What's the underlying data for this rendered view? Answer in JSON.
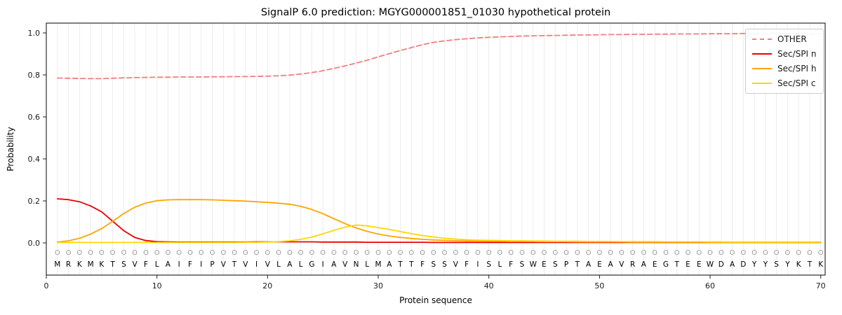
{
  "title": "SignalP 6.0 prediction: MGYG000001851_01030 hypothetical protein",
  "axes": {
    "ylabel": "Probability",
    "xlabel": "Protein sequence",
    "yticks": [
      0.0,
      0.2,
      0.4,
      0.6,
      0.8,
      1.0
    ],
    "xticks": [
      0,
      10,
      20,
      30,
      40,
      50,
      60,
      70
    ]
  },
  "chart_data": {
    "type": "line",
    "title": "SignalP 6.0 prediction: MGYG000001851_01030 hypothetical protein",
    "xlabel": "Protein sequence",
    "ylabel": "Probability",
    "xlim": [
      0,
      70.4
    ],
    "ylim": [
      -0.15,
      1.05
    ],
    "grid": "vertical-per-residue",
    "legend_position": "upper right",
    "sequence": "MRKMKTSVFLAIFIPVTVIVLALGIAVNLMATTFSSVFISLFSWESPTAEAVRAEGTEEWDADYYSYKTK",
    "predicted_labels": "OOOOOOOOOOOOOOOOOOOOOOOOOOOOOOOOOOOOOOOOOOOOOOOOOOOOOOOOOOOOOOOOOOOOOO",
    "x_positions_note": "x = residue index 1..70",
    "series": [
      {
        "id": "other",
        "name": "OTHER",
        "color": "#f08080",
        "dashed": true,
        "values": [
          0.785,
          0.784,
          0.783,
          0.782,
          0.782,
          0.784,
          0.786,
          0.787,
          0.788,
          0.789,
          0.789,
          0.79,
          0.79,
          0.79,
          0.791,
          0.791,
          0.792,
          0.792,
          0.793,
          0.794,
          0.796,
          0.799,
          0.804,
          0.811,
          0.82,
          0.831,
          0.843,
          0.856,
          0.87,
          0.886,
          0.901,
          0.916,
          0.93,
          0.944,
          0.955,
          0.962,
          0.968,
          0.972,
          0.976,
          0.979,
          0.981,
          0.983,
          0.985,
          0.986,
          0.987,
          0.988,
          0.989,
          0.99,
          0.99,
          0.991,
          0.992,
          0.992,
          0.993,
          0.993,
          0.994,
          0.994,
          0.995,
          0.995,
          0.995,
          0.996,
          0.996,
          0.996,
          0.997,
          0.997,
          0.997,
          0.997,
          0.997,
          0.997,
          0.997,
          0.997
        ]
      },
      {
        "id": "sec-spi-n",
        "name": "Sec/SPI n",
        "color": "#ee0000",
        "dashed": false,
        "values": [
          0.21,
          0.206,
          0.196,
          0.176,
          0.148,
          0.103,
          0.058,
          0.026,
          0.011,
          0.006,
          0.005,
          0.004,
          0.004,
          0.004,
          0.004,
          0.004,
          0.004,
          0.004,
          0.005,
          0.005,
          0.005,
          0.005,
          0.005,
          0.005,
          0.004,
          0.004,
          0.004,
          0.004,
          0.003,
          0.003,
          0.003,
          0.003,
          0.003,
          0.003,
          0.002,
          0.002,
          0.002,
          0.002,
          0.002,
          0.002,
          0.002,
          0.002,
          0.002,
          0.002,
          0.002,
          0.002,
          0.002,
          0.002,
          0.002,
          0.002,
          0.002,
          0.002,
          0.002,
          0.002,
          0.002,
          0.002,
          0.002,
          0.002,
          0.002,
          0.002,
          0.002,
          0.002,
          0.002,
          0.002,
          0.002,
          0.002,
          0.002,
          0.002,
          0.002,
          0.002
        ]
      },
      {
        "id": "sec-spi-h",
        "name": "Sec/SPI h",
        "color": "#ffa500",
        "dashed": false,
        "values": [
          0.004,
          0.01,
          0.022,
          0.042,
          0.068,
          0.103,
          0.14,
          0.17,
          0.19,
          0.201,
          0.205,
          0.206,
          0.206,
          0.206,
          0.205,
          0.203,
          0.201,
          0.199,
          0.196,
          0.193,
          0.189,
          0.184,
          0.174,
          0.159,
          0.139,
          0.115,
          0.092,
          0.071,
          0.055,
          0.042,
          0.033,
          0.026,
          0.021,
          0.017,
          0.014,
          0.012,
          0.01,
          0.009,
          0.009,
          0.008,
          0.008,
          0.007,
          0.007,
          0.007,
          0.006,
          0.006,
          0.006,
          0.005,
          0.005,
          0.005,
          0.005,
          0.005,
          0.004,
          0.004,
          0.004,
          0.004,
          0.004,
          0.004,
          0.004,
          0.003,
          0.003,
          0.003,
          0.003,
          0.003,
          0.003,
          0.003,
          0.003,
          0.003,
          0.003,
          0.003
        ]
      },
      {
        "id": "sec-spi-c",
        "name": "Sec/SPI c",
        "color": "#ffd700",
        "dashed": false,
        "values": [
          0.002,
          0.002,
          0.002,
          0.002,
          0.002,
          0.002,
          0.002,
          0.002,
          0.002,
          0.002,
          0.002,
          0.002,
          0.002,
          0.002,
          0.002,
          0.002,
          0.002,
          0.003,
          0.003,
          0.004,
          0.006,
          0.01,
          0.017,
          0.028,
          0.043,
          0.06,
          0.075,
          0.085,
          0.081,
          0.073,
          0.064,
          0.054,
          0.044,
          0.035,
          0.028,
          0.022,
          0.018,
          0.015,
          0.013,
          0.012,
          0.011,
          0.01,
          0.01,
          0.009,
          0.009,
          0.008,
          0.008,
          0.008,
          0.007,
          0.007,
          0.007,
          0.006,
          0.006,
          0.006,
          0.006,
          0.005,
          0.005,
          0.005,
          0.005,
          0.005,
          0.005,
          0.004,
          0.004,
          0.004,
          0.004,
          0.004,
          0.004,
          0.004,
          0.004,
          0.004
        ]
      }
    ]
  }
}
